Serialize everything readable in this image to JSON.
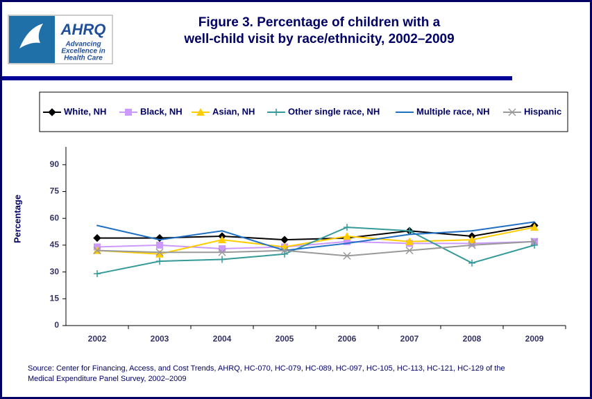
{
  "logo": {
    "name": "AHRQ",
    "tagline": [
      "Advancing",
      "Excellence in",
      "Health Care"
    ]
  },
  "chart_data": {
    "type": "line",
    "title": [
      "Figure 3. Percentage of children with a",
      "well-child visit by race/ethnicity, 2002–2009"
    ],
    "y_label": "Percentage",
    "categories": [
      "2002",
      "2003",
      "2004",
      "2005",
      "2006",
      "2007",
      "2008",
      "2009"
    ],
    "ylim": [
      0,
      100
    ],
    "yticks": [
      0,
      15,
      30,
      45,
      60,
      75,
      90
    ],
    "series": [
      {
        "name": "White, NH",
        "color": "#000000",
        "marker": "diamond",
        "values": [
          49,
          49,
          50,
          48,
          49,
          53,
          50,
          56
        ]
      },
      {
        "name": "Black, NH",
        "color": "#cc99ff",
        "marker": "square",
        "values": [
          44,
          45,
          43,
          44,
          47,
          46,
          46,
          47
        ]
      },
      {
        "name": "Asian, NH",
        "color": "#ffcc00",
        "marker": "triangle",
        "values": [
          42,
          40,
          48,
          44,
          50,
          47,
          48,
          55
        ]
      },
      {
        "name": "Other single race, NH",
        "color": "#339999",
        "marker": "plus",
        "values": [
          29,
          36,
          37,
          40,
          55,
          53,
          35,
          45
        ]
      },
      {
        "name": "Multiple race, NH",
        "color": "#1f6fc5",
        "marker": "none",
        "values": [
          56,
          48,
          53,
          42,
          46,
          51,
          53,
          58
        ]
      },
      {
        "name": "Hispanic",
        "color": "#999999",
        "marker": "x",
        "values": [
          42,
          41,
          41,
          42,
          39,
          42,
          45,
          47
        ]
      }
    ],
    "source": [
      "Source: Center for Financing, Access, and Cost Trends, AHRQ, HC-070, HC-079, HC-089, HC-097, HC-105, HC-113, HC-121, HC-129 of the",
      "Medical Expenditure Panel Survey,  2002–2009"
    ]
  }
}
